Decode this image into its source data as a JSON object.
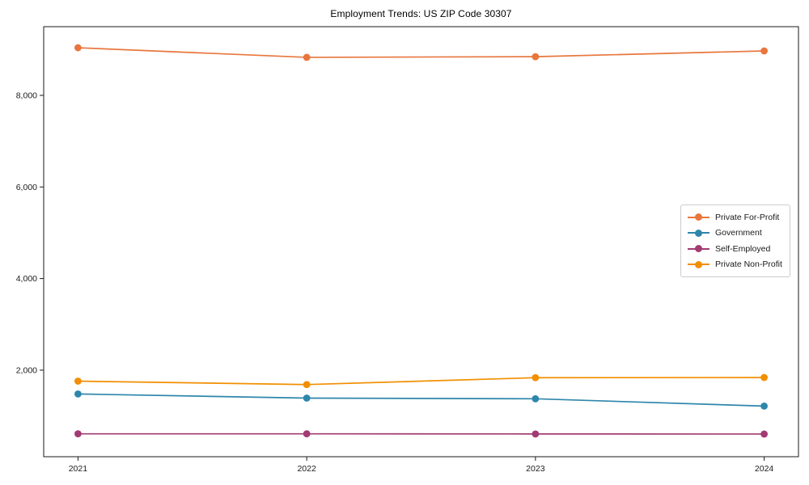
{
  "chart_data": {
    "type": "line",
    "title": "Employment Trends: US ZIP Code 30307",
    "xlabel": "",
    "ylabel": "",
    "x": [
      2021,
      2022,
      2023,
      2024
    ],
    "x_tick_labels": [
      "2021",
      "2022",
      "2023",
      "2024"
    ],
    "y_ticks": [
      2000,
      4000,
      6000,
      8000
    ],
    "y_tick_labels": [
      "2,000",
      "4,000",
      "6,000",
      "8,000"
    ],
    "xlim": [
      2020.85,
      2024.15
    ],
    "ylim": [
      110,
      9500
    ],
    "grid": false,
    "legend_position": "center right",
    "series": [
      {
        "name": "Private For-Profit",
        "color": "#e8763d",
        "values": [
          9040,
          8830,
          8845,
          8970
        ]
      },
      {
        "name": "Government",
        "color": "#2e86ab",
        "values": [
          1480,
          1390,
          1375,
          1215
        ]
      },
      {
        "name": "Self-Employed",
        "color": "#a23b72",
        "values": [
          610,
          610,
          607,
          605
        ]
      },
      {
        "name": "Private Non-Profit",
        "color": "#f18f01",
        "values": [
          1760,
          1685,
          1835,
          1840
        ]
      }
    ]
  }
}
